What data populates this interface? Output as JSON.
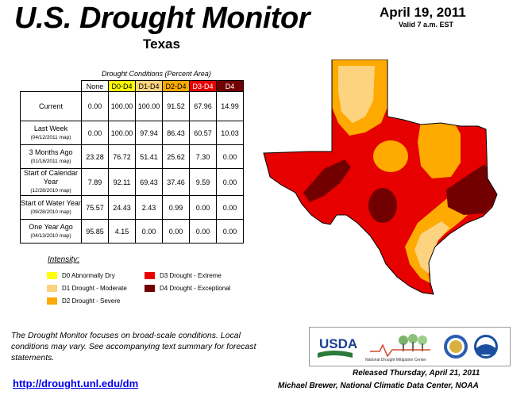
{
  "header": {
    "title": "U.S. Drought Monitor",
    "state": "Texas",
    "date": "April 19, 2011",
    "valid": "Valid 7 a.m. EST"
  },
  "table": {
    "caption": "Drought Conditions (Percent Area)",
    "columns": [
      "None",
      "D0-D4",
      "D1-D4",
      "D2-D4",
      "D3-D4",
      "D4"
    ],
    "rows": [
      {
        "label": "Current",
        "sub": "",
        "values": [
          "0.00",
          "100.00",
          "100.00",
          "91.52",
          "67.96",
          "14.99"
        ]
      },
      {
        "label": "Last Week",
        "sub": "(04/12/2011 map)",
        "values": [
          "0.00",
          "100.00",
          "97.94",
          "86.43",
          "60.57",
          "10.03"
        ]
      },
      {
        "label": "3 Months Ago",
        "sub": "(01/18/2011 map)",
        "values": [
          "23.28",
          "76.72",
          "51.41",
          "25.62",
          "7.30",
          "0.00"
        ]
      },
      {
        "label": "Start of Calendar Year",
        "sub": "(12/28/2010 map)",
        "values": [
          "7.89",
          "92.11",
          "69.43",
          "37.46",
          "9.59",
          "0.00"
        ]
      },
      {
        "label": "Start of Water Year",
        "sub": "(09/28/2010 map)",
        "values": [
          "75.57",
          "24.43",
          "2.43",
          "0.99",
          "0.00",
          "0.00"
        ]
      },
      {
        "label": "One Year Ago",
        "sub": "(04/13/2010 map)",
        "values": [
          "95.85",
          "4.15",
          "0.00",
          "0.00",
          "0.00",
          "0.00"
        ]
      }
    ]
  },
  "legend": {
    "title": "Intensity:",
    "items": [
      {
        "label": "D0 Abnormally Dry",
        "color": "#ffff00"
      },
      {
        "label": "D1 Drought - Moderate",
        "color": "#fcd37f"
      },
      {
        "label": "D2 Drought - Severe",
        "color": "#ffaa00"
      },
      {
        "label": "D3 Drought - Extreme",
        "color": "#e60000"
      },
      {
        "label": "D4 Drought - Exceptional",
        "color": "#730000"
      }
    ]
  },
  "footer": {
    "note": "The Drought Monitor focuses on broad-scale conditions. Local conditions may vary. See accompanying text summary for forecast statements.",
    "url": "http://drought.unl.edu/dm",
    "released": "Released Thursday, April 21, 2011",
    "author": "Michael Brewer, National Climatic Data Center, NOAA"
  },
  "logos": {
    "usda": "USDA",
    "ndmc": "National Drought Mitigation Center"
  },
  "map": {
    "region": "Texas",
    "categories_shown": [
      "D1",
      "D2",
      "D3",
      "D4"
    ]
  }
}
